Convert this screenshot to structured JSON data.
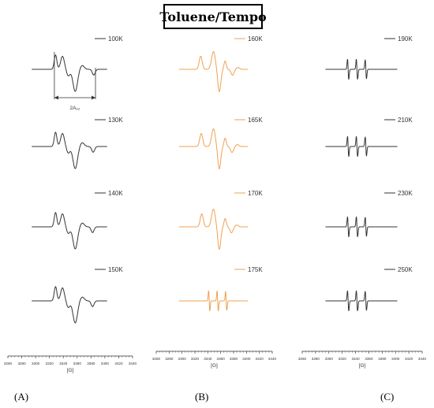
{
  "title": "Toluene/Tempo",
  "chart_data": [
    {
      "panel": "(A)",
      "type": "line",
      "color": "#333333",
      "xlabel": "[G]",
      "xlim": [
        3260,
        3440
      ],
      "xticks": [
        3260,
        3280,
        3300,
        3320,
        3340,
        3360,
        3380,
        3400,
        3420,
        3440
      ],
      "annotation": "2A₂₂",
      "series": [
        {
          "name": "100K",
          "spectrum": "rigid",
          "features_G": {
            "low_peak": 3326,
            "center": 3360,
            "high_dip": 3392
          }
        },
        {
          "name": "130K",
          "spectrum": "rigid",
          "features_G": {
            "low_peak": 3326,
            "center": 3360,
            "high_dip": 3391
          }
        },
        {
          "name": "140K",
          "spectrum": "rigid",
          "features_G": {
            "low_peak": 3326,
            "center": 3360,
            "high_dip": 3390
          }
        },
        {
          "name": "150K",
          "spectrum": "rigid",
          "features_G": {
            "low_peak": 3326,
            "center": 3360,
            "high_dip": 3390
          }
        }
      ]
    },
    {
      "panel": "(B)",
      "type": "line",
      "color": "#f0a050",
      "xlabel": "[G]",
      "xlim": [
        3260,
        3440
      ],
      "xticks": [
        3260,
        3280,
        3300,
        3320,
        3340,
        3360,
        3380,
        3400,
        3420,
        3440
      ],
      "series": [
        {
          "name": "160K",
          "spectrum": "intermediate",
          "features_G": {
            "low_peak": 3330,
            "center": 3358,
            "high_dip": 3386
          }
        },
        {
          "name": "165K",
          "spectrum": "intermediate",
          "features_G": {
            "low_peak": 3331,
            "center": 3358,
            "high_dip": 3385
          }
        },
        {
          "name": "170K",
          "spectrum": "intermediate",
          "features_G": {
            "low_peak": 3332,
            "center": 3358,
            "high_dip": 3384
          }
        },
        {
          "name": "175K",
          "spectrum": "triplet",
          "features_G": {
            "low_peak": 3342,
            "center": 3358,
            "high_dip": 3374
          }
        }
      ]
    },
    {
      "panel": "(C)",
      "type": "line",
      "color": "#333333",
      "xlabel": "[G]",
      "xlim": [
        3260,
        3440
      ],
      "xticks": [
        3260,
        3280,
        3300,
        3320,
        3340,
        3360,
        3380,
        3400,
        3420,
        3440
      ],
      "series": [
        {
          "name": "190K",
          "spectrum": "triplet",
          "features_G": {
            "low_peak": 3326,
            "center": 3342,
            "high_dip": 3358
          }
        },
        {
          "name": "210K",
          "spectrum": "triplet",
          "features_G": {
            "low_peak": 3326,
            "center": 3342,
            "high_dip": 3358
          }
        },
        {
          "name": "230K",
          "spectrum": "triplet",
          "features_G": {
            "low_peak": 3326,
            "center": 3342,
            "high_dip": 3358
          }
        },
        {
          "name": "250K",
          "spectrum": "triplet",
          "features_G": {
            "low_peak": 3326,
            "center": 3342,
            "high_dip": 3358
          }
        }
      ]
    }
  ]
}
